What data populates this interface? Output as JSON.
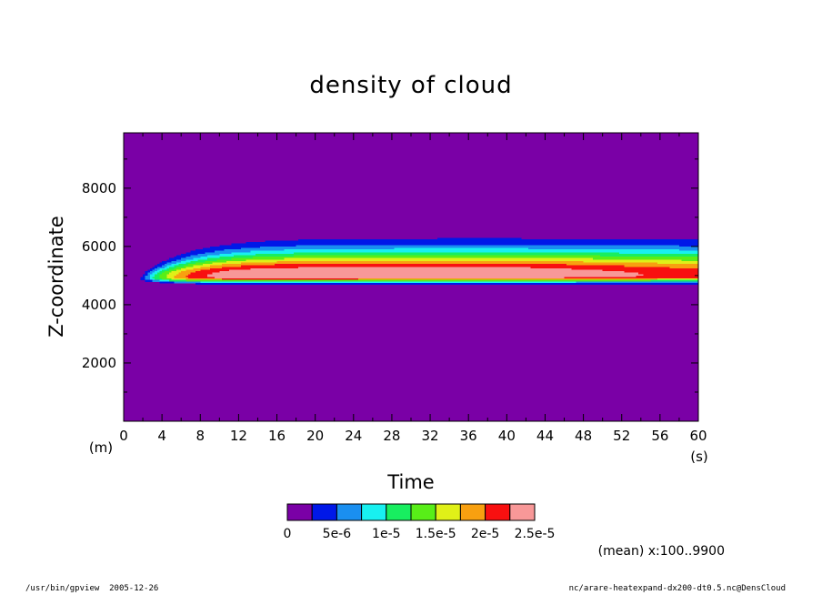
{
  "chart_data": {
    "type": "heatmap",
    "title": "density of cloud",
    "xlabel": "Time",
    "ylabel": "Z-coordinate",
    "x_unit": "(s)",
    "y_unit": "(m)",
    "xlim": [
      0,
      60
    ],
    "ylim": [
      0,
      9900
    ],
    "x_ticks": [
      "0",
      "4",
      "8",
      "12",
      "16",
      "20",
      "24",
      "28",
      "32",
      "36",
      "40",
      "44",
      "48",
      "52",
      "56",
      "60"
    ],
    "y_ticks": [
      "2000",
      "4000",
      "6000",
      "8000"
    ],
    "colorbar": {
      "colors": [
        "#7a00a6",
        "#0018e8",
        "#1a8ff0",
        "#18f0f0",
        "#18ee60",
        "#58ee18",
        "#e0f018",
        "#f8a010",
        "#f81010",
        "#f89898"
      ],
      "tick_labels": [
        "0",
        "5e-6",
        "1e-5",
        "1.5e-5",
        "2e-5",
        "2.5e-5"
      ]
    },
    "cloud": {
      "onset_time": 1.5,
      "center_z": 4900,
      "base_z_late": 4650,
      "top_z_late": 6300,
      "max_value": 2.6e-05
    },
    "annotation": "(mean) x:100..9900"
  },
  "footer": {
    "left": "/usr/bin/gpview  2005-12-26",
    "right": "nc/arare-heatexpand-dx200-dt0.5.nc@DensCloud"
  }
}
